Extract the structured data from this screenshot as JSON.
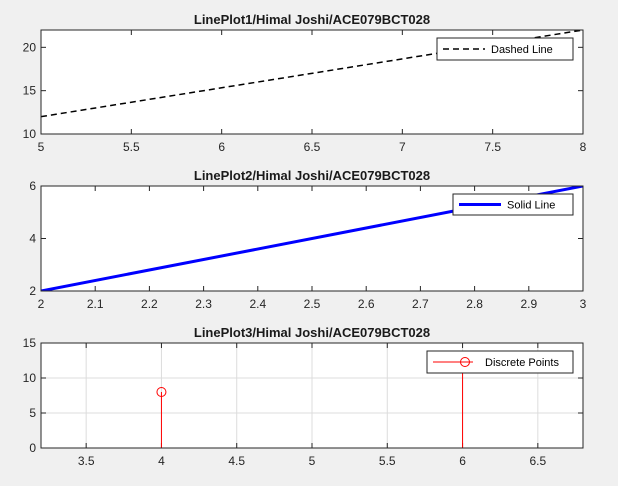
{
  "chart_data": [
    {
      "type": "line",
      "title": "LinePlot1/Himal Joshi/ACE079BCT028",
      "xlim": [
        5,
        8
      ],
      "ylim": [
        10,
        22
      ],
      "xticks": [
        5,
        5.5,
        6,
        6.5,
        7,
        7.5,
        8
      ],
      "yticks": [
        10,
        15,
        20
      ],
      "grid": false,
      "legend_position": "top-right",
      "series": [
        {
          "name": "Dashed Line",
          "style": "dashed",
          "color": "#000000",
          "x": [
            5,
            8
          ],
          "y": [
            12,
            22
          ]
        }
      ]
    },
    {
      "type": "line",
      "title": "LinePlot2/Himal Joshi/ACE079BCT028",
      "xlim": [
        2,
        3
      ],
      "ylim": [
        2,
        6
      ],
      "xticks": [
        2,
        2.1,
        2.2,
        2.3,
        2.4,
        2.5,
        2.6,
        2.7,
        2.8,
        2.9,
        3
      ],
      "yticks": [
        2,
        4,
        6
      ],
      "grid": false,
      "legend_position": "top-right",
      "series": [
        {
          "name": "Solid Line",
          "style": "solid",
          "color": "#0000ff",
          "x": [
            2,
            3
          ],
          "y": [
            2,
            6
          ]
        }
      ]
    },
    {
      "type": "stem",
      "title": "LinePlot3/Himal Joshi/ACE079BCT028",
      "xlim": [
        3.2,
        6.8
      ],
      "ylim": [
        0,
        15
      ],
      "xticks": [
        3.5,
        4,
        4.5,
        5,
        5.5,
        6,
        6.5
      ],
      "yticks": [
        0,
        5,
        10,
        15
      ],
      "grid": true,
      "legend_position": "top-right",
      "series": [
        {
          "name": "Discrete Points",
          "marker": "circle",
          "color": "#ff0000",
          "x": [
            4,
            6
          ],
          "y": [
            8,
            12
          ]
        }
      ]
    }
  ]
}
